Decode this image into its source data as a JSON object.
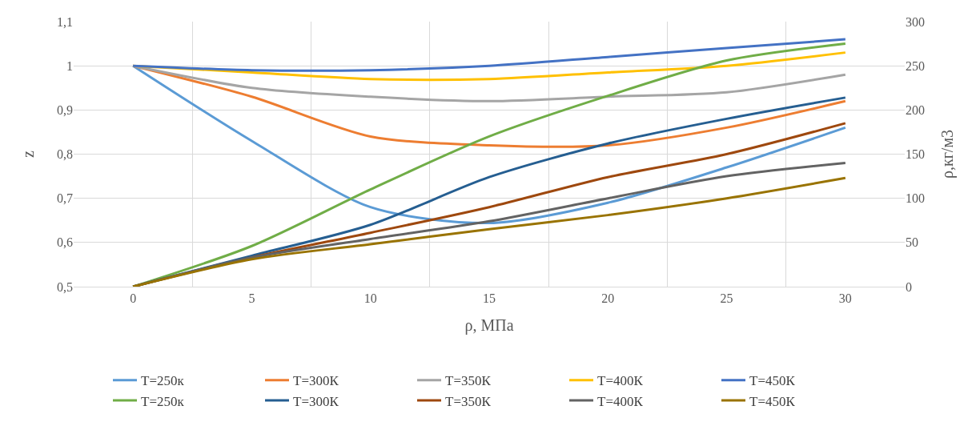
{
  "chart_data": {
    "type": "line",
    "xlabel": "ρ, МПа",
    "ylabel": "z",
    "y2label": "ρ,кг/м3",
    "categories": [
      "0",
      "5",
      "10",
      "15",
      "20",
      "25",
      "30"
    ],
    "ylim": [
      0.5,
      1.1
    ],
    "yticks": [
      {
        "value": 0.5,
        "label": "0,5"
      },
      {
        "value": 0.6,
        "label": "0,6"
      },
      {
        "value": 0.7,
        "label": "0,7"
      },
      {
        "value": 0.8,
        "label": "0,8"
      },
      {
        "value": 0.9,
        "label": "0,9"
      },
      {
        "value": 1,
        "label": "1"
      },
      {
        "value": 1.1,
        "label": "1,1"
      }
    ],
    "y2lim": [
      0,
      300
    ],
    "y2ticks": [
      0,
      50,
      100,
      150,
      200,
      250,
      300
    ],
    "grid": true,
    "legend": "bottom",
    "series": [
      {
        "name": "T=250к",
        "color": "#5b9bd5",
        "values": [
          1,
          0.83,
          0.68,
          0.644,
          0.69,
          0.77,
          0.86
        ]
      },
      {
        "name": "T=300К",
        "color": "#ed7d31",
        "values": [
          1,
          0.93,
          0.84,
          0.82,
          0.82,
          0.86,
          0.92
        ]
      },
      {
        "name": "T=350К",
        "color": "#a5a5a5",
        "values": [
          1,
          0.95,
          0.93,
          0.92,
          0.93,
          0.94,
          0.98
        ]
      },
      {
        "name": "T=400К",
        "color": "#ffc000",
        "values": [
          1,
          0.985,
          0.97,
          0.97,
          0.985,
          1.0,
          1.03
        ]
      },
      {
        "name": "T=450К",
        "color": "#4472c4",
        "values": [
          1,
          0.99,
          0.99,
          1.0,
          1.02,
          1.04,
          1.06
        ]
      },
      {
        "name": "T=250к",
        "color": "#70ad47",
        "axis": "y2",
        "values": [
          0,
          46,
          110,
          170,
          216,
          256,
          275
        ]
      },
      {
        "name": "T=300К",
        "color": "#255e91",
        "axis": "y2",
        "values": [
          0,
          35,
          70,
          124,
          162,
          190,
          214
        ]
      },
      {
        "name": "T=350К",
        "color": "#9e480e",
        "axis": "y2",
        "values": [
          0,
          33,
          61,
          90,
          124,
          150,
          185
        ]
      },
      {
        "name": "T=400К",
        "color": "#636363",
        "axis": "y2",
        "values": [
          0,
          33,
          54,
          74,
          100,
          125,
          140
        ]
      },
      {
        "name": "T=450К",
        "color": "#997300",
        "axis": "y2",
        "values": [
          0,
          31,
          48,
          65,
          81,
          100,
          123
        ]
      }
    ]
  }
}
